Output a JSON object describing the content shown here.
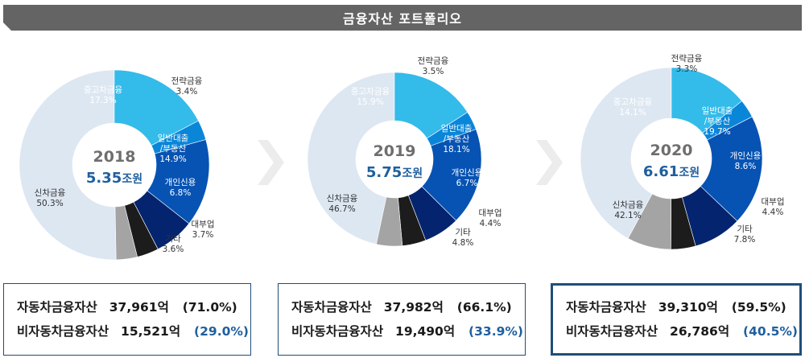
{
  "header": {
    "title": "금융자산 포트폴리오"
  },
  "colors": {
    "신차금융": "#dde7f2",
    "중고차금융": "#33bbea",
    "전략금융": "#0a86d9",
    "일반대출/부동산": "#0753b3",
    "개인신용": "#04246f",
    "대부업": "#1c1c1c",
    "기타": "#a4a4a4",
    "year_text": "#6e6e6e",
    "total_text": "#1f5f9e",
    "header_bg": "#646464",
    "box_border": "#1f4e79"
  },
  "chart_data": [
    {
      "type": "pie",
      "year": "2018",
      "total": "5.35",
      "total_unit": "조원",
      "slices": [
        {
          "label": "신차금융",
          "value": 50.3
        },
        {
          "label": "중고차금융",
          "value": 17.3
        },
        {
          "label": "전략금융",
          "value": 3.4
        },
        {
          "label": "일반대출/부동산",
          "value": 14.9
        },
        {
          "label": "개인신용",
          "value": 6.8
        },
        {
          "label": "대부업",
          "value": 3.7
        },
        {
          "label": "기타",
          "value": 3.6
        }
      ]
    },
    {
      "type": "pie",
      "year": "2019",
      "total": "5.75",
      "total_unit": "조원",
      "slices": [
        {
          "label": "신차금융",
          "value": 46.7
        },
        {
          "label": "중고차금융",
          "value": 15.9
        },
        {
          "label": "전략금융",
          "value": 3.5
        },
        {
          "label": "일반대출/부동산",
          "value": 18.1
        },
        {
          "label": "개인신용",
          "value": 6.7
        },
        {
          "label": "대부업",
          "value": 4.4
        },
        {
          "label": "기타",
          "value": 4.8
        }
      ]
    },
    {
      "type": "pie",
      "year": "2020",
      "total": "6.61",
      "total_unit": "조원",
      "slices": [
        {
          "label": "신차금융",
          "value": 42.1
        },
        {
          "label": "중고차금융",
          "value": 14.1
        },
        {
          "label": "전략금융",
          "value": 3.3
        },
        {
          "label": "일반대출/부동산",
          "value": 19.7
        },
        {
          "label": "개인신용",
          "value": 8.6
        },
        {
          "label": "대부업",
          "value": 4.4
        },
        {
          "label": "기타",
          "value": 7.8
        }
      ]
    }
  ],
  "summary": [
    {
      "auto_label": "자동차금융자산",
      "auto_amount": "37,961억",
      "auto_pct": "(71.0%)",
      "non_label": "비자동차금융자산",
      "non_amount": "15,521억",
      "non_pct": "(29.0%)"
    },
    {
      "auto_label": "자동차금융자산",
      "auto_amount": "37,982억",
      "auto_pct": "(66.1%)",
      "non_label": "비자동차금융자산",
      "non_amount": "19,490억",
      "non_pct": "(33.9%)"
    },
    {
      "auto_label": "자동차금융자산",
      "auto_amount": "39,310억",
      "auto_pct": "(59.5%)",
      "non_label": "비자동차금융자산",
      "non_amount": "26,786억",
      "non_pct": "(40.5%)"
    }
  ]
}
